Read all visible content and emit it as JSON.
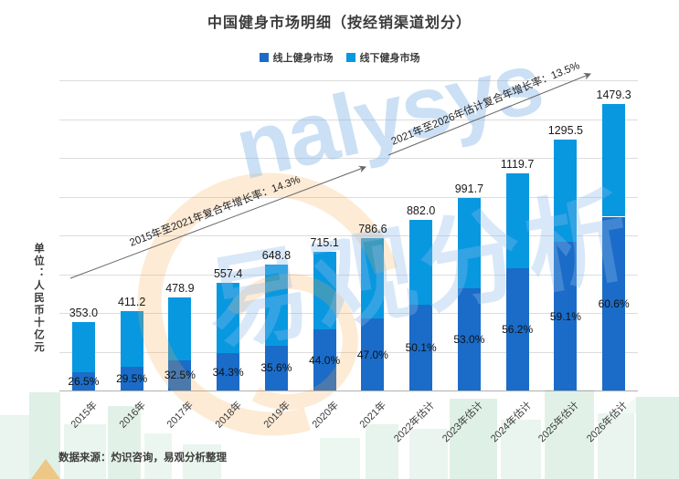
{
  "title": "中国健身市场明细（按经销渠道划分）",
  "legend": [
    {
      "label": "线上健身市场",
      "color": "#1A6CC8"
    },
    {
      "label": "线下健身市场",
      "color": "#0898E0"
    }
  ],
  "ylabel": "单位：人民币十亿元",
  "source": "数据来源：灼识咨询，易观分析整理",
  "watermark": {
    "brand_text": "nalysys",
    "brand_cjk": "易观分析",
    "orange": "#F7A94A",
    "blue": "#8FBCEA"
  },
  "chart_data": {
    "type": "bar",
    "stacked": true,
    "grid": true,
    "ylim": [
      0,
      1600
    ],
    "grid_step": 200,
    "categories": [
      "2015年",
      "2016年",
      "2017年",
      "2018年",
      "2019年",
      "2020年",
      "2021年",
      "2022年估计",
      "2023年估计",
      "2024年估计",
      "2025年估计",
      "2026年估计"
    ],
    "totals": [
      353.0,
      411.2,
      478.9,
      557.4,
      648.8,
      715.1,
      786.6,
      882.0,
      991.7,
      1119.7,
      1295.5,
      1479.3
    ],
    "total_labels": [
      "353.0",
      "411.2",
      "478.9",
      "557.4",
      "648.8",
      "715.1",
      "786.6",
      "882.0",
      "991.7",
      "1119.7",
      "1295.5",
      "1479.3"
    ],
    "online_share_pct": [
      26.5,
      29.5,
      32.5,
      34.3,
      35.6,
      44.0,
      47.0,
      50.1,
      53.0,
      56.2,
      59.1,
      60.6
    ],
    "online_share_labels": [
      "26.5%",
      "29.5%",
      "32.5%",
      "34.3%",
      "35.6%",
      "44.0%",
      "47.0%",
      "50.1%",
      "53.0%",
      "56.2%",
      "59.1%",
      "60.6%"
    ],
    "series": [
      {
        "name": "线上健身市场",
        "color": "#1A6CC8",
        "values": [
          93.5,
          121.3,
          155.6,
          191.2,
          231.0,
          314.6,
          369.7,
          441.9,
          525.6,
          629.3,
          765.6,
          896.5
        ]
      },
      {
        "name": "线下健身市场",
        "color": "#0898E0",
        "values": [
          259.5,
          289.9,
          323.3,
          366.2,
          417.8,
          400.5,
          416.9,
          440.1,
          466.1,
          490.4,
          529.9,
          582.8
        ]
      }
    ],
    "annotations": [
      {
        "label": "2015年至2021年复合年增长率：14.3%"
      },
      {
        "label": "2021年至2026年估计复合年增长率：13.5%"
      }
    ]
  }
}
